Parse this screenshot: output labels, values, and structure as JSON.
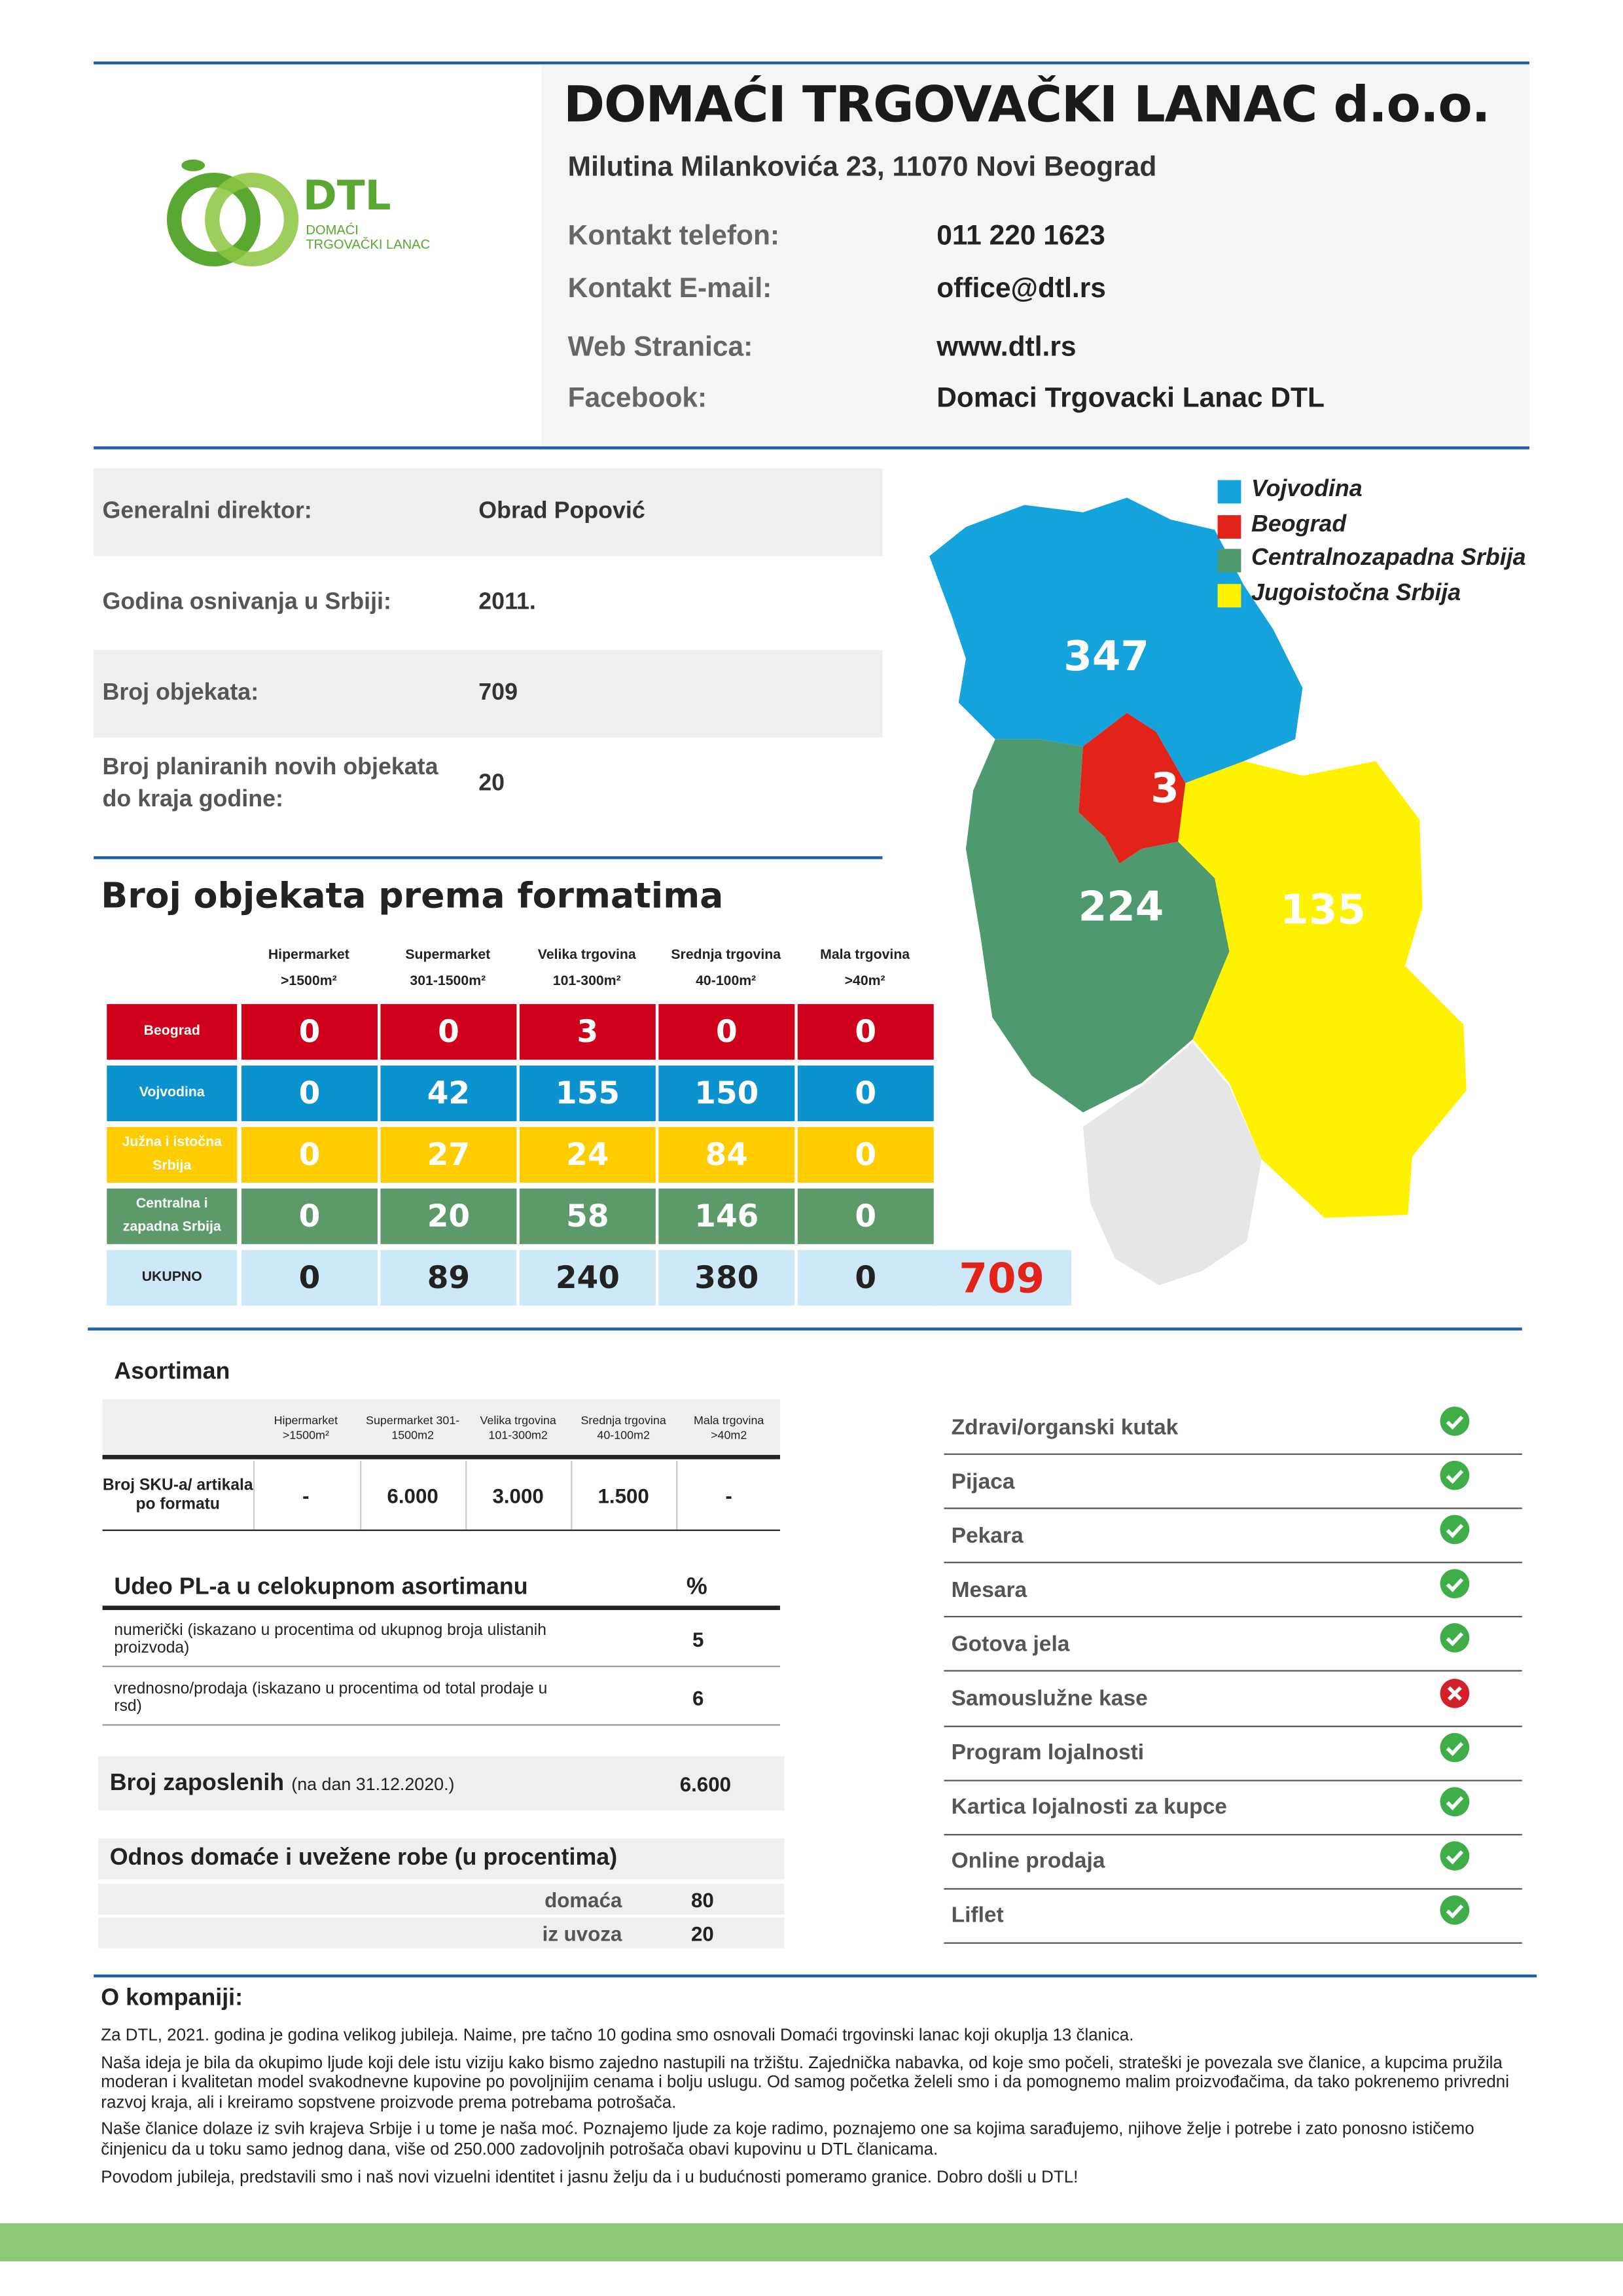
{
  "header": {
    "title": "DOMAĆI TRGOVAČKI LANAC d.o.o.",
    "address": "Milutina Milankovića 23, 11070 Novi Beograd",
    "contacts": [
      {
        "label": "Kontakt telefon:",
        "value": "011 220 1623"
      },
      {
        "label": "Kontakt E-mail:",
        "value": "office@dtl.rs"
      },
      {
        "label": "Web Stranica:",
        "value": "www.dtl.rs"
      },
      {
        "label": "Facebook:",
        "value": "Domaci Trgovacki Lanac DTL"
      }
    ],
    "logo": {
      "name": "DTL",
      "line1": "DOMAĆI",
      "line2": "TRGOVAČKI LANAC"
    }
  },
  "info": [
    {
      "label": "Generalni direktor:",
      "value": "Obrad Popović"
    },
    {
      "label": "Godina osnivanja u Srbiji:",
      "value": "2011."
    },
    {
      "label": "Broj objekata:",
      "value": "709"
    },
    {
      "label": "Broj planiranih novih objekata do kraja godine:",
      "value": "20"
    }
  ],
  "formats": {
    "title": "Broj objekata prema formatima",
    "columns": [
      {
        "name": "Hipermarket",
        "size": ">1500m²"
      },
      {
        "name": "Supermarket",
        "size": "301-1500m²"
      },
      {
        "name": "Velika trgovina",
        "size": "101-300m²"
      },
      {
        "name": "Srednja trgovina",
        "size": "40-100m²"
      },
      {
        "name": "Mala trgovina",
        "size": ">40m²"
      }
    ],
    "rows": [
      {
        "label": "Beograd",
        "color": "#d0021b",
        "values": [
          0,
          0,
          3,
          0,
          0
        ]
      },
      {
        "label": "Vojvodina",
        "color": "#0a93cf",
        "values": [
          0,
          42,
          155,
          150,
          0
        ]
      },
      {
        "label": "Južna i istočna Srbija",
        "color": "#ffcc00",
        "values": [
          0,
          27,
          24,
          84,
          0
        ]
      },
      {
        "label": "Centralna i zapadna Srbija",
        "color": "#5c9a6a",
        "values": [
          0,
          20,
          58,
          146,
          0
        ]
      },
      {
        "label": "UKUPNO",
        "color": "#cde8f6",
        "values": [
          0,
          89,
          240,
          380,
          0
        ]
      }
    ],
    "total": 709
  },
  "map": {
    "legend": [
      {
        "label": "Vojvodina",
        "color": "#14a3dd"
      },
      {
        "label": "Beograd",
        "color": "#e2231a"
      },
      {
        "label": "Centralnozapadna Srbija",
        "color": "#4e9a6e"
      },
      {
        "label": "Jugoistočna Srbija",
        "color": "#fff200"
      }
    ],
    "regions": [
      {
        "value": 347
      },
      {
        "value": 3
      },
      {
        "value": 224
      },
      {
        "value": 135
      }
    ]
  },
  "assortment": {
    "title": "Asortiman",
    "columns": [
      "Hipermarket >1500m²",
      "Supermarket 301-1500m2",
      "Velika trgovina 101-300m2",
      "Srednja trgovina 40-100m2",
      "Mala trgovina >40m2"
    ],
    "row_label": "Broj SKU-a/ artikala po formatu",
    "values": [
      "-",
      "6.000",
      "3.000",
      "1.500",
      "-"
    ]
  },
  "private_label": {
    "title": "Udeo PL-a u celokupnom asortimanu",
    "unit": "%",
    "rows": [
      {
        "label": "numerički (iskazano u procentima od ukupnog broja ulistanih proizvoda)",
        "value": 5
      },
      {
        "label": "vrednosno/prodaja (iskazano u procentima od total prodaje u rsd)",
        "value": 6
      }
    ]
  },
  "employees": {
    "label": "Broj zaposlenih",
    "note": "(na dan 31.12.2020.)",
    "value": "6.600"
  },
  "origin": {
    "title": "Odnos domaće i uvežene robe (u procentima)",
    "rows": [
      {
        "label": "domaća",
        "value": 80
      },
      {
        "label": "iz uvoza",
        "value": 20
      }
    ]
  },
  "features": [
    {
      "label": "Zdravi/organski kutak",
      "available": true
    },
    {
      "label": "Pijaca",
      "available": true
    },
    {
      "label": "Pekara",
      "available": true
    },
    {
      "label": "Mesara",
      "available": true
    },
    {
      "label": "Gotova jela",
      "available": true
    },
    {
      "label": "Samouslužne kase",
      "available": false
    },
    {
      "label": "Program lojalnosti",
      "available": true
    },
    {
      "label": "Kartica lojalnosti za kupce",
      "available": true
    },
    {
      "label": "Online prodaja",
      "available": true
    },
    {
      "label": "Liflet",
      "available": true
    }
  ],
  "about": {
    "title": "O kompaniji:",
    "paragraphs": [
      "Za DTL, 2021. godina je godina velikog jubileja. Naime, pre tačno 10 godina smo osnovali Domaći trgovinski lanac koji okuplja 13 članica.",
      "Naša ideja je bila da okupimo ljude koji dele istu viziju kako bismo zajedno nastupili na tržištu. Zajednička nabavka, od koje smo počeli, strateški je povezala sve članice, a kupcima pružila moderan i kvalitetan model svakodnevne kupovine po povoljnijim cenama i bolju uslugu. Od samog početka želeli smo i da pomognemo malim proizvođačima, da tako pokrenemo privredni razvoj kraja, ali i kreiramo sopstvene proizvode prema potrebama potrošača.",
      "Naše članice dolaze iz svih krajeva Srbije i u tome je naša moć. Poznajemo ljude za koje radimo, poznajemo one sa kojima sarađujemo, njihove želje i potrebe i zato ponosno ističemo činjenicu da u toku samo jednog dana, više od 250.000 zadovoljnih potrošača obavi kupovinu u DTL članicama.",
      "Povodom jubileja, predstavili smo i naš novi vizuelni identitet i jasnu želju da i u budućnosti pomeramo granice. Dobro došli u DTL!"
    ]
  }
}
